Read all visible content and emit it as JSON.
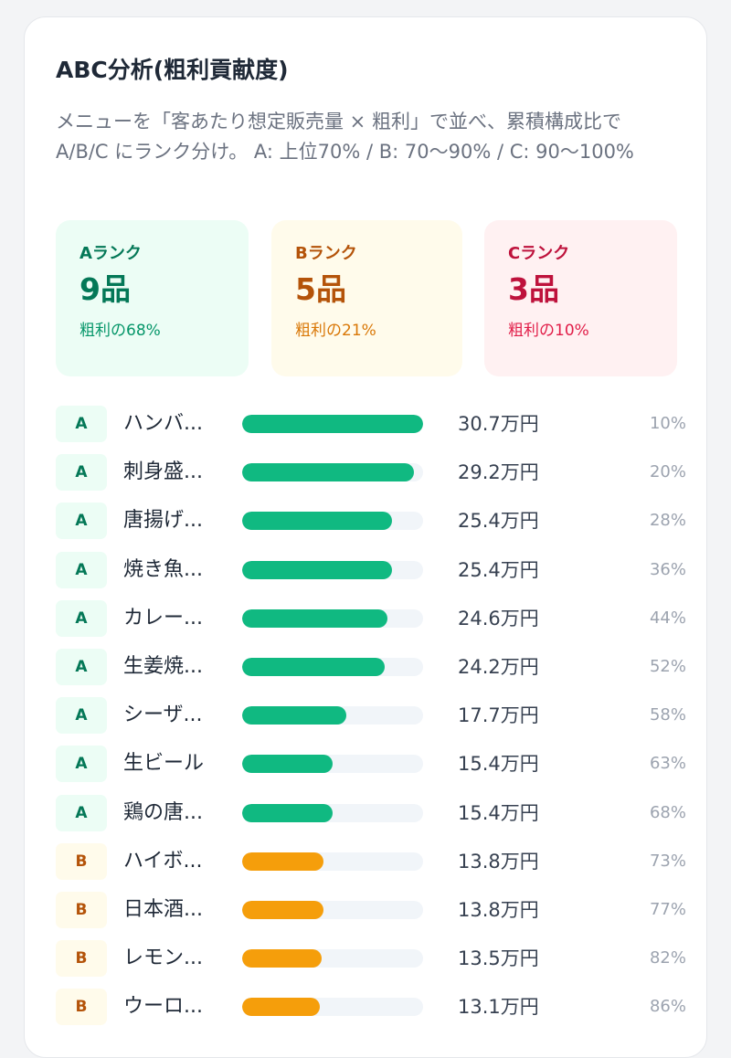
{
  "card": {
    "title": "ABC分析(粗利貢献度)",
    "description": "メニューを「客あたり想定販売量 × 粗利」で並べ、累積構成比で A/B/C にランク分け。 A: 上位70% / B: 70〜90% / C: 90〜100%"
  },
  "summary": [
    {
      "label": "Aランク",
      "count": "9品",
      "share": "粗利の68%"
    },
    {
      "label": "Bランク",
      "count": "5品",
      "share": "粗利の21%"
    },
    {
      "label": "Cランク",
      "count": "3品",
      "share": "粗利の10%"
    }
  ],
  "items": [
    {
      "rank": "A",
      "name": "ハンバ...",
      "value": "30.7万円",
      "cumulative": "10%",
      "ratio": 1.0
    },
    {
      "rank": "A",
      "name": "刺身盛...",
      "value": "29.2万円",
      "cumulative": "20%",
      "ratio": 0.951
    },
    {
      "rank": "A",
      "name": "唐揚げ...",
      "value": "25.4万円",
      "cumulative": "28%",
      "ratio": 0.827
    },
    {
      "rank": "A",
      "name": "焼き魚...",
      "value": "25.4万円",
      "cumulative": "36%",
      "ratio": 0.827
    },
    {
      "rank": "A",
      "name": "カレー...",
      "value": "24.6万円",
      "cumulative": "44%",
      "ratio": 0.801
    },
    {
      "rank": "A",
      "name": "生姜焼...",
      "value": "24.2万円",
      "cumulative": "52%",
      "ratio": 0.788
    },
    {
      "rank": "A",
      "name": "シーザ...",
      "value": "17.7万円",
      "cumulative": "58%",
      "ratio": 0.577
    },
    {
      "rank": "A",
      "name": "生ビール",
      "value": "15.4万円",
      "cumulative": "63%",
      "ratio": 0.502
    },
    {
      "rank": "A",
      "name": "鶏の唐...",
      "value": "15.4万円",
      "cumulative": "68%",
      "ratio": 0.502
    },
    {
      "rank": "B",
      "name": "ハイボ...",
      "value": "13.8万円",
      "cumulative": "73%",
      "ratio": 0.45
    },
    {
      "rank": "B",
      "name": "日本酒...",
      "value": "13.8万円",
      "cumulative": "77%",
      "ratio": 0.45
    },
    {
      "rank": "B",
      "name": "レモン...",
      "value": "13.5万円",
      "cumulative": "82%",
      "ratio": 0.44
    },
    {
      "rank": "B",
      "name": "ウーロ...",
      "value": "13.1万円",
      "cumulative": "86%",
      "ratio": 0.427
    }
  ],
  "colors": {
    "rank_a_bar": "#10b981",
    "rank_b_bar": "#f59e0b",
    "rank_c_bar": "#f43f5e",
    "track": "#f1f5f9"
  }
}
